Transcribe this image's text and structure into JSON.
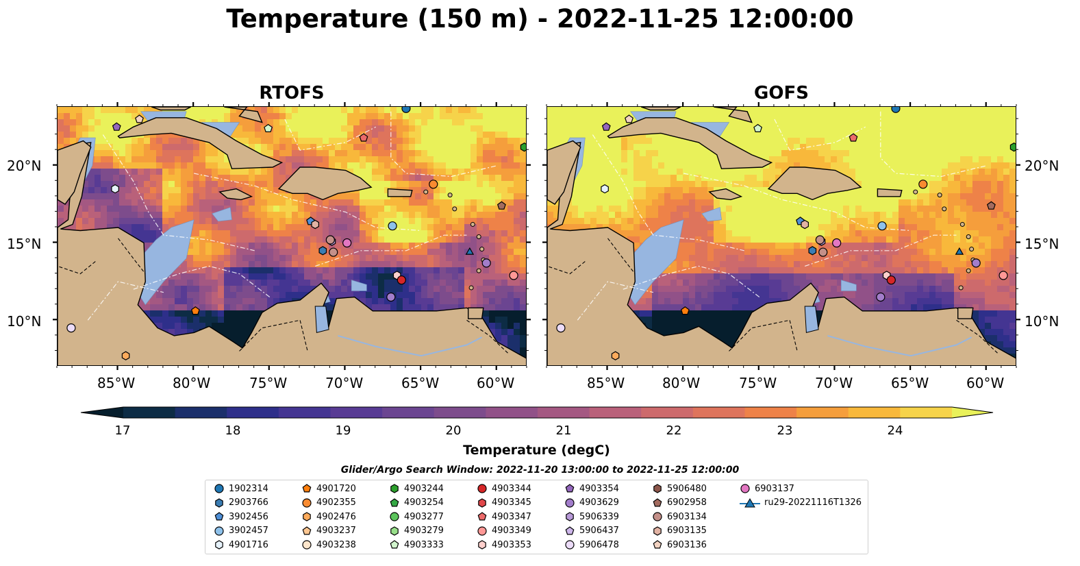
{
  "title": "Temperature (150 m) - 2022-11-25 12:00:00",
  "panels": [
    {
      "title": "RTOFS"
    },
    {
      "title": "GOFS"
    }
  ],
  "lat_labels": [
    "20°N",
    "15°N",
    "10°N"
  ],
  "lon_labels": [
    "85°W",
    "80°W",
    "75°W",
    "70°W",
    "65°W",
    "60°W"
  ],
  "colorbar": {
    "label": "Temperature (degC)",
    "ticks": [
      "17",
      "18",
      "19",
      "20",
      "21",
      "22",
      "23",
      "24"
    ],
    "range": [
      16.5,
      24.5
    ],
    "colors": [
      "#061e2d",
      "#0d2c45",
      "#1b2f6b",
      "#2e2f8a",
      "#443592",
      "#583b94",
      "#6b4591",
      "#7d4c8c",
      "#915188",
      "#a45882",
      "#b9617a",
      "#cd6a6c",
      "#de745c",
      "#ee8248",
      "#f59e3c",
      "#f8b83b",
      "#f6d34a",
      "#e9f15a"
    ]
  },
  "legend": {
    "title": "Glider/Argo Search Window: 2022-11-20 13:00:00 to 2022-11-25 12:00:00",
    "items": [
      {
        "label": "1902314",
        "marker": "circle",
        "color": "#1f77b4"
      },
      {
        "label": "2903766",
        "marker": "hexagon",
        "color": "#3b7db3"
      },
      {
        "label": "3902456",
        "marker": "pentagon",
        "color": "#4f8fd6"
      },
      {
        "label": "3902457",
        "marker": "circle",
        "color": "#8ec1ea"
      },
      {
        "label": "4901716",
        "marker": "hexagon",
        "color": "#e6f2fb"
      },
      {
        "label": "4901720",
        "marker": "pentagon",
        "color": "#ff7f0e"
      },
      {
        "label": "4902355",
        "marker": "circle",
        "color": "#f98b31"
      },
      {
        "label": "4902476",
        "marker": "hexagon",
        "color": "#fdab5c"
      },
      {
        "label": "4903237",
        "marker": "pentagon",
        "color": "#fdc792"
      },
      {
        "label": "4903238",
        "marker": "circle",
        "color": "#fee6cc"
      },
      {
        "label": "4903244",
        "marker": "hexagon",
        "color": "#2ca02c"
      },
      {
        "label": "4903254",
        "marker": "pentagon",
        "color": "#34a844"
      },
      {
        "label": "4903277",
        "marker": "circle",
        "color": "#5cc45c"
      },
      {
        "label": "4903279",
        "marker": "hexagon",
        "color": "#98df8a"
      },
      {
        "label": "4903333",
        "marker": "pentagon",
        "color": "#d2f5cd"
      },
      {
        "label": "4903344",
        "marker": "circle",
        "color": "#d62728"
      },
      {
        "label": "4903345",
        "marker": "hexagon",
        "color": "#e0474a"
      },
      {
        "label": "4903347",
        "marker": "pentagon",
        "color": "#ec6a6a"
      },
      {
        "label": "4903349",
        "marker": "circle",
        "color": "#ff9896"
      },
      {
        "label": "4903353",
        "marker": "hexagon",
        "color": "#ffd0cd"
      },
      {
        "label": "4903354",
        "marker": "pentagon",
        "color": "#9467bd"
      },
      {
        "label": "4903629",
        "marker": "circle",
        "color": "#a27dcb"
      },
      {
        "label": "5906339",
        "marker": "hexagon",
        "color": "#b89ad8"
      },
      {
        "label": "5906437",
        "marker": "pentagon",
        "color": "#cdb6ea"
      },
      {
        "label": "5906478",
        "marker": "circle",
        "color": "#ecdcf8"
      },
      {
        "label": "5906480",
        "marker": "hexagon",
        "color": "#8c564b"
      },
      {
        "label": "6902958",
        "marker": "pentagon",
        "color": "#a36b5f"
      },
      {
        "label": "6903134",
        "marker": "circle",
        "color": "#c49089"
      },
      {
        "label": "6903135",
        "marker": "hexagon",
        "color": "#e2b3a4"
      },
      {
        "label": "6903136",
        "marker": "pentagon",
        "color": "#f3d3c2"
      },
      {
        "label": "6903137",
        "marker": "circle",
        "color": "#e377c2"
      },
      {
        "label": "ru29-20221116T1326",
        "marker": "triangle",
        "color": "#1f77b4"
      }
    ]
  },
  "colors": {
    "land": "#d2b48c",
    "shallow_water": "#97b6e0",
    "coast": "#000000"
  }
}
